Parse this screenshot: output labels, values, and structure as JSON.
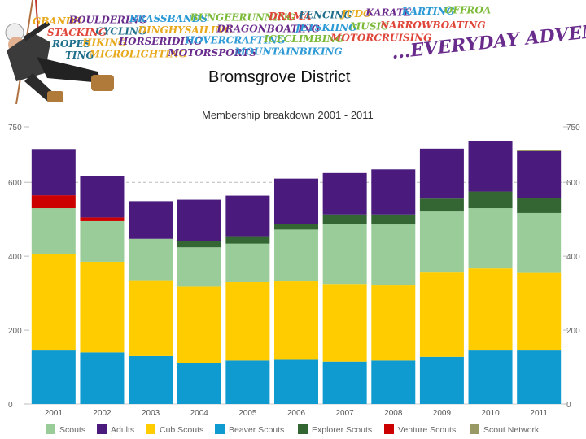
{
  "slide": {
    "title": "Bromsgrove District"
  },
  "banner": {
    "tagline": "...EVERYDAY ADVENTURE",
    "words_row1": [
      "GBANDS",
      "BOULDERING",
      "BRASSBANDS",
      "BUNGEERUNNING",
      "DRAMA",
      "FENCING",
      "JUDO",
      "KARATE",
      "KARTING",
      "OFFROA"
    ],
    "words_row2": [
      "STACKING",
      "CYCLING",
      "DINGHYSAILING",
      "DRAGONBOATING",
      "JETSKIING",
      "MUSIC",
      "NARROWBOATING"
    ],
    "words_row3": [
      "ROPES",
      "HIKING",
      "HORSERIDING",
      "HOVERCRAFTING",
      "ICECLIMBING",
      "MOTORCRUISING"
    ],
    "words_row4": [
      "TING",
      "MICROLIGHTING",
      "MOTORSPORTS",
      "MOUNTAINBIKING"
    ],
    "colors": [
      "#e8a91c",
      "#6a2c8c",
      "#2d9ad6",
      "#7cba3a",
      "#e0453a",
      "#1f6f8b"
    ]
  },
  "chart_data": {
    "type": "bar",
    "stacked": true,
    "title": "Membership breakdown 2001 - 2011",
    "categories": [
      "2001",
      "2002",
      "2003",
      "2004",
      "2005",
      "2006",
      "2007",
      "2008",
      "2009",
      "2010",
      "2011"
    ],
    "series": [
      {
        "name": "Beaver Scouts",
        "color": "#0f9ad0",
        "values": [
          145,
          140,
          130,
          110,
          118,
          120,
          115,
          118,
          128,
          145,
          145
        ]
      },
      {
        "name": "Cub Scouts",
        "color": "#ffcc00",
        "values": [
          260,
          245,
          203,
          208,
          212,
          212,
          210,
          203,
          228,
          222,
          210
        ]
      },
      {
        "name": "Scouts",
        "color": "#99cc99",
        "values": [
          125,
          110,
          114,
          106,
          104,
          140,
          163,
          165,
          165,
          163,
          162
        ]
      },
      {
        "name": "Explorer Scouts",
        "color": "#336633",
        "values": [
          0,
          0,
          0,
          17,
          20,
          16,
          25,
          27,
          35,
          45,
          40
        ]
      },
      {
        "name": "Venture Scouts",
        "color": "#cc0000",
        "values": [
          35,
          10,
          0,
          0,
          0,
          0,
          0,
          0,
          0,
          0,
          0
        ]
      },
      {
        "name": "Adults",
        "color": "#4a1a7c",
        "values": [
          125,
          113,
          102,
          112,
          110,
          122,
          112,
          122,
          135,
          137,
          127
        ]
      },
      {
        "name": "Scout Network",
        "color": "#999966",
        "values": [
          0,
          0,
          0,
          0,
          0,
          0,
          0,
          0,
          0,
          0,
          3
        ]
      }
    ],
    "legend_order": [
      "Scouts",
      "Adults",
      "Cub Scouts",
      "Beaver Scouts",
      "Explorer Scouts",
      "Venture Scouts",
      "Scout Network"
    ],
    "yticks": [
      "0",
      "200",
      "400",
      "600",
      "750"
    ],
    "ytick_values": [
      0,
      200,
      400,
      600,
      750
    ],
    "ylim": [
      0,
      750
    ],
    "reference_line": 600,
    "xlabel": "",
    "ylabel": "",
    "legend_position": "bottom",
    "grid": false
  }
}
